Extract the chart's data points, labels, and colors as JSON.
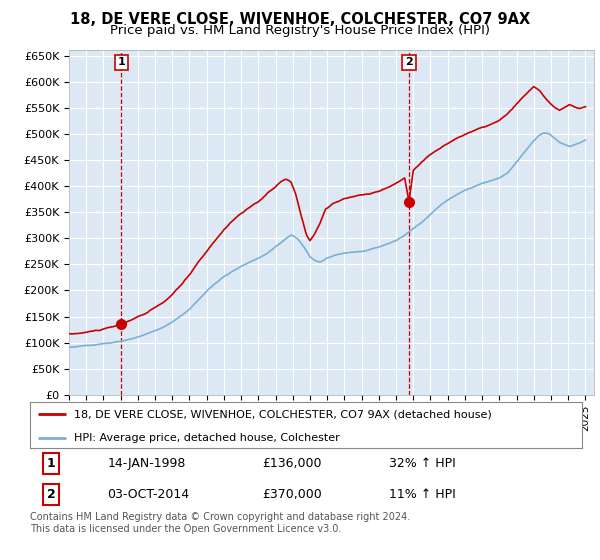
{
  "title": "18, DE VERE CLOSE, WIVENHOE, COLCHESTER, CO7 9AX",
  "subtitle": "Price paid vs. HM Land Registry's House Price Index (HPI)",
  "ylim": [
    0,
    660000
  ],
  "yticks": [
    0,
    50000,
    100000,
    150000,
    200000,
    250000,
    300000,
    350000,
    400000,
    450000,
    500000,
    550000,
    600000,
    650000
  ],
  "ytick_labels": [
    "£0",
    "£50K",
    "£100K",
    "£150K",
    "£200K",
    "£250K",
    "£300K",
    "£350K",
    "£400K",
    "£450K",
    "£500K",
    "£550K",
    "£600K",
    "£650K"
  ],
  "xlim_start": 1995.0,
  "xlim_end": 2025.5,
  "purchase1_x": 1998.04,
  "purchase1_y": 136000,
  "purchase1_label": "1",
  "purchase2_x": 2014.75,
  "purchase2_y": 370000,
  "purchase2_label": "2",
  "line1_color": "#cc0000",
  "line2_color": "#7ab0d4",
  "grid_color": "#cccccc",
  "plot_bg_color": "#dce9f5",
  "background_color": "#ffffff",
  "legend_line1": "18, DE VERE CLOSE, WIVENHOE, COLCHESTER, CO7 9AX (detached house)",
  "legend_line2": "HPI: Average price, detached house, Colchester",
  "ann1_date": "14-JAN-1998",
  "ann1_price": "£136,000",
  "ann1_hpi": "32% ↑ HPI",
  "ann2_date": "03-OCT-2014",
  "ann2_price": "£370,000",
  "ann2_hpi": "11% ↑ HPI",
  "footer": "Contains HM Land Registry data © Crown copyright and database right 2024.\nThis data is licensed under the Open Government Licence v3.0.",
  "title_fontsize": 10.5,
  "subtitle_fontsize": 9.5
}
